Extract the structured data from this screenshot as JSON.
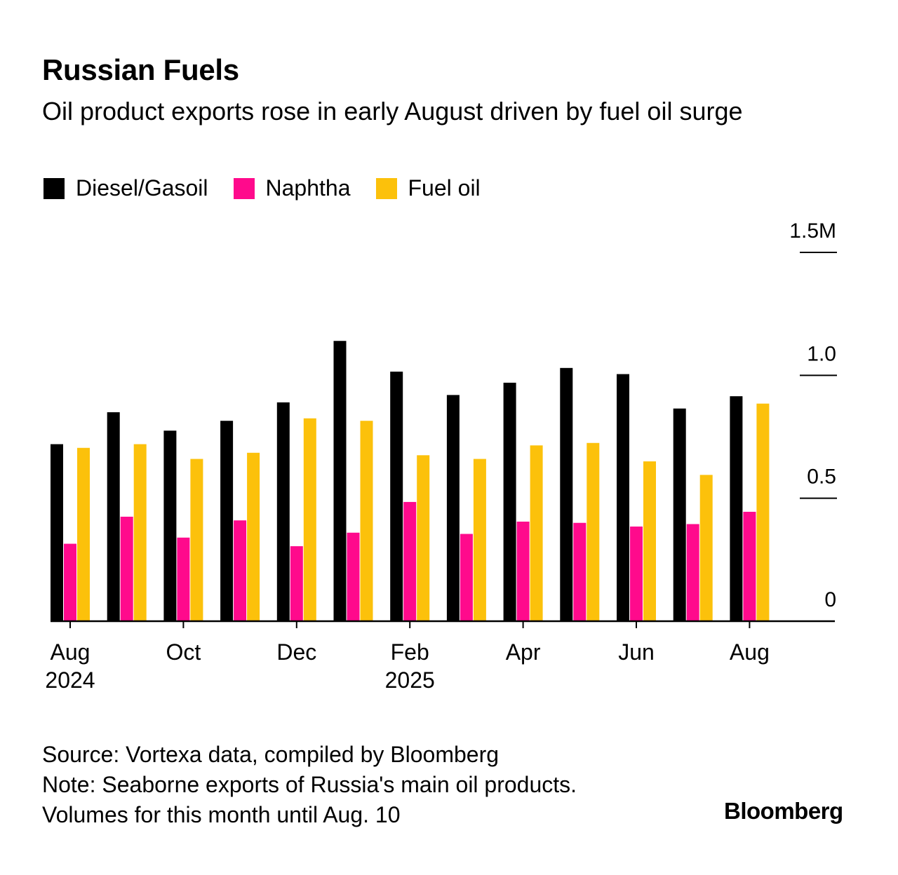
{
  "chart_data": {
    "type": "bar",
    "title": "Russian Fuels",
    "subtitle": "Oil product exports rose in early August driven by fuel oil surge",
    "categories": [
      "Aug 2024",
      "Sep 2024",
      "Oct 2024",
      "Nov 2024",
      "Dec 2024",
      "Jan 2025",
      "Feb 2025",
      "Mar 2025",
      "Apr 2025",
      "May 2025",
      "Jun 2025",
      "Jul 2025",
      "Aug 2025"
    ],
    "series": [
      {
        "name": "Diesel/Gasoil",
        "color": "#000000",
        "values": [
          0.72,
          0.85,
          0.775,
          0.815,
          0.89,
          1.14,
          1.015,
          0.92,
          0.97,
          1.03,
          1.005,
          0.865,
          0.915
        ]
      },
      {
        "name": "Naphtha",
        "color": "#ff0a8c",
        "values": [
          0.315,
          0.425,
          0.34,
          0.41,
          0.305,
          0.36,
          0.485,
          0.355,
          0.405,
          0.4,
          0.385,
          0.395,
          0.445
        ]
      },
      {
        "name": "Fuel oil",
        "color": "#fcc10b",
        "values": [
          0.705,
          0.72,
          0.66,
          0.685,
          0.825,
          0.815,
          0.675,
          0.66,
          0.715,
          0.725,
          0.65,
          0.595,
          0.885
        ]
      }
    ],
    "ylim": [
      0,
      1.5
    ],
    "yticks": [
      {
        "value": 0,
        "label": "0"
      },
      {
        "value": 0.5,
        "label": "0.5"
      },
      {
        "value": 1.0,
        "label": "1.0"
      },
      {
        "value": 1.5,
        "label": "1.5M"
      }
    ],
    "xticks": [
      {
        "index": 0,
        "line1": "Aug",
        "line2": "2024"
      },
      {
        "index": 2,
        "line1": "Oct",
        "line2": ""
      },
      {
        "index": 4,
        "line1": "Dec",
        "line2": ""
      },
      {
        "index": 6,
        "line1": "Feb",
        "line2": "2025"
      },
      {
        "index": 8,
        "line1": "Apr",
        "line2": ""
      },
      {
        "index": 10,
        "line1": "Jun",
        "line2": ""
      },
      {
        "index": 12,
        "line1": "Aug",
        "line2": ""
      }
    ],
    "xlabel": "",
    "ylabel": "",
    "grid": false,
    "legend_position": "top-left"
  },
  "footer": {
    "source": "Source: Vortexa data, compiled by Bloomberg",
    "note1": "Note: Seaborne exports of Russia's main oil products.",
    "note2": "Volumes for this month until Aug. 10",
    "brand": "Bloomberg"
  }
}
